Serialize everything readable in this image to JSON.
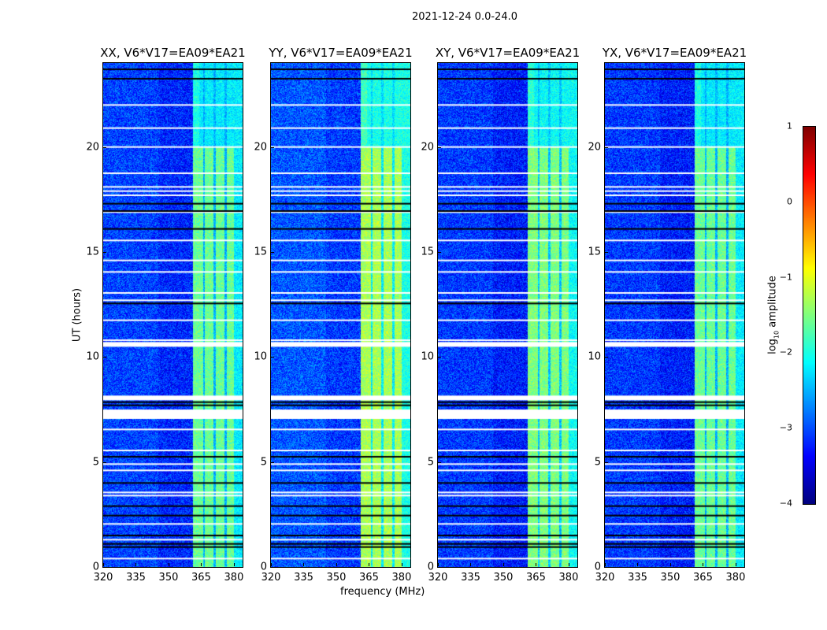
{
  "chart_data": {
    "type": "heatmap",
    "title": "2021-12-24 0.0-24.0",
    "xlabel": "frequency (MHz)",
    "ylabel": "UT (hours)",
    "xlim": [
      320,
      384
    ],
    "ylim": [
      0,
      24
    ],
    "xticks": [
      "320",
      "335",
      "350",
      "365",
      "380"
    ],
    "xtick_values": [
      320,
      335,
      350,
      365,
      380
    ],
    "yticks": [
      "0",
      "5",
      "10",
      "15",
      "20"
    ],
    "ytick_values": [
      0,
      5,
      10,
      15,
      20
    ],
    "panels": [
      {
        "title": "XX, V6*V17=EA09*EA21",
        "band_level": -1.6,
        "upper_band_level": -2.2,
        "background": -3.2
      },
      {
        "title": "YY, V6*V17=EA09*EA21",
        "band_level": -1.3,
        "upper_band_level": -2.0,
        "background": -3.1
      },
      {
        "title": "XY, V6*V17=EA09*EA21",
        "band_level": -1.5,
        "upper_band_level": -2.1,
        "background": -3.25
      },
      {
        "title": "YX, V6*V17=EA09*EA21",
        "band_level": -1.6,
        "upper_band_level": -2.2,
        "background": -3.25
      }
    ],
    "rfi_band_mhz": [
      361,
      380
    ],
    "flagged_white_hours": [
      22.0,
      20.9,
      20.0,
      18.75,
      18.1,
      17.9,
      17.7,
      16.9,
      15.55,
      14.6,
      14.05,
      13.05,
      12.7,
      11.75,
      10.8,
      10.6,
      8.05,
      7.3,
      6.55,
      5.55,
      4.9,
      4.6,
      3.55,
      3.4,
      2.05,
      1.3,
      0.4
    ],
    "flagged_black_hours": [
      23.7,
      23.25,
      17.3,
      16.95,
      16.1,
      12.55,
      7.85,
      7.7,
      5.25,
      4.0,
      2.9,
      2.45,
      1.5,
      1.1,
      0.95
    ],
    "colorbar": {
      "label": "log10 amplitude",
      "label_main": "log",
      "label_sub": "10",
      "label_rest": " amplitude",
      "range": [
        -4,
        1
      ],
      "ticks": [
        "1",
        "0",
        "−1",
        "−2",
        "−3",
        "−4"
      ],
      "tick_values": [
        1,
        0,
        -1,
        -2,
        -3,
        -4
      ],
      "colormap": "jet"
    }
  }
}
